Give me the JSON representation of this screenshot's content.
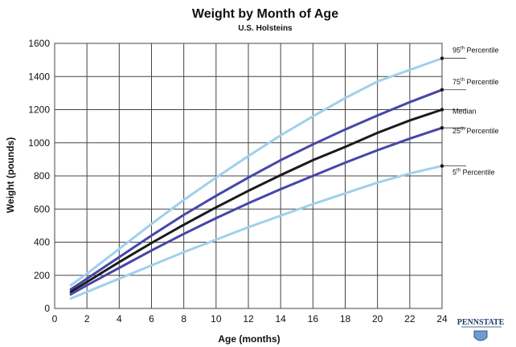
{
  "chart_data": {
    "type": "line",
    "title": "Weight by Month of Age",
    "subtitle": "U.S. Holsteins",
    "xlabel": "Age (months)",
    "ylabel": "Weight (pounds)",
    "xlim": [
      0,
      24
    ],
    "ylim": [
      0,
      1600
    ],
    "xticks": [
      0,
      2,
      4,
      6,
      8,
      10,
      12,
      14,
      16,
      18,
      20,
      22,
      24
    ],
    "yticks": [
      0,
      200,
      400,
      600,
      800,
      1000,
      1200,
      1400,
      1600
    ],
    "grid": true,
    "legend_placement": "right",
    "x": [
      1,
      2,
      4,
      6,
      8,
      10,
      12,
      14,
      16,
      18,
      20,
      22,
      24
    ],
    "series": [
      {
        "name": "95th Percentile",
        "color": "#9fd0ec",
        "values": [
          140,
          210,
          360,
          510,
          655,
          790,
          920,
          1045,
          1160,
          1270,
          1370,
          1440,
          1510
        ]
      },
      {
        "name": "75th Percentile",
        "color": "#4646a8",
        "values": [
          115,
          180,
          310,
          440,
          565,
          680,
          790,
          895,
          990,
          1080,
          1165,
          1245,
          1320
        ]
      },
      {
        "name": "Median",
        "color": "#1a1a1a",
        "values": [
          100,
          160,
          280,
          395,
          505,
          610,
          710,
          805,
          895,
          975,
          1060,
          1135,
          1200
        ]
      },
      {
        "name": "25th Percentile",
        "color": "#4646a8",
        "values": [
          85,
          140,
          245,
          350,
          450,
          545,
          635,
          720,
          800,
          880,
          955,
          1025,
          1090
        ]
      },
      {
        "name": "5th Percentile",
        "color": "#9fd0ec",
        "values": [
          60,
          100,
          180,
          260,
          340,
          415,
          490,
          560,
          630,
          695,
          760,
          815,
          860
        ]
      }
    ],
    "legend_labels": [
      {
        "base": "95",
        "sup": "th",
        "rest": " Percentile"
      },
      {
        "base": "75",
        "sup": "th",
        "rest": " Percentile"
      },
      {
        "base": "Median",
        "sup": "",
        "rest": ""
      },
      {
        "base": "25",
        "sup": "th",
        "rest": " Percentile"
      },
      {
        "base": "5",
        "sup": "th",
        "rest": " Percentile"
      }
    ]
  },
  "logo": {
    "text": "PENNSTATE"
  }
}
